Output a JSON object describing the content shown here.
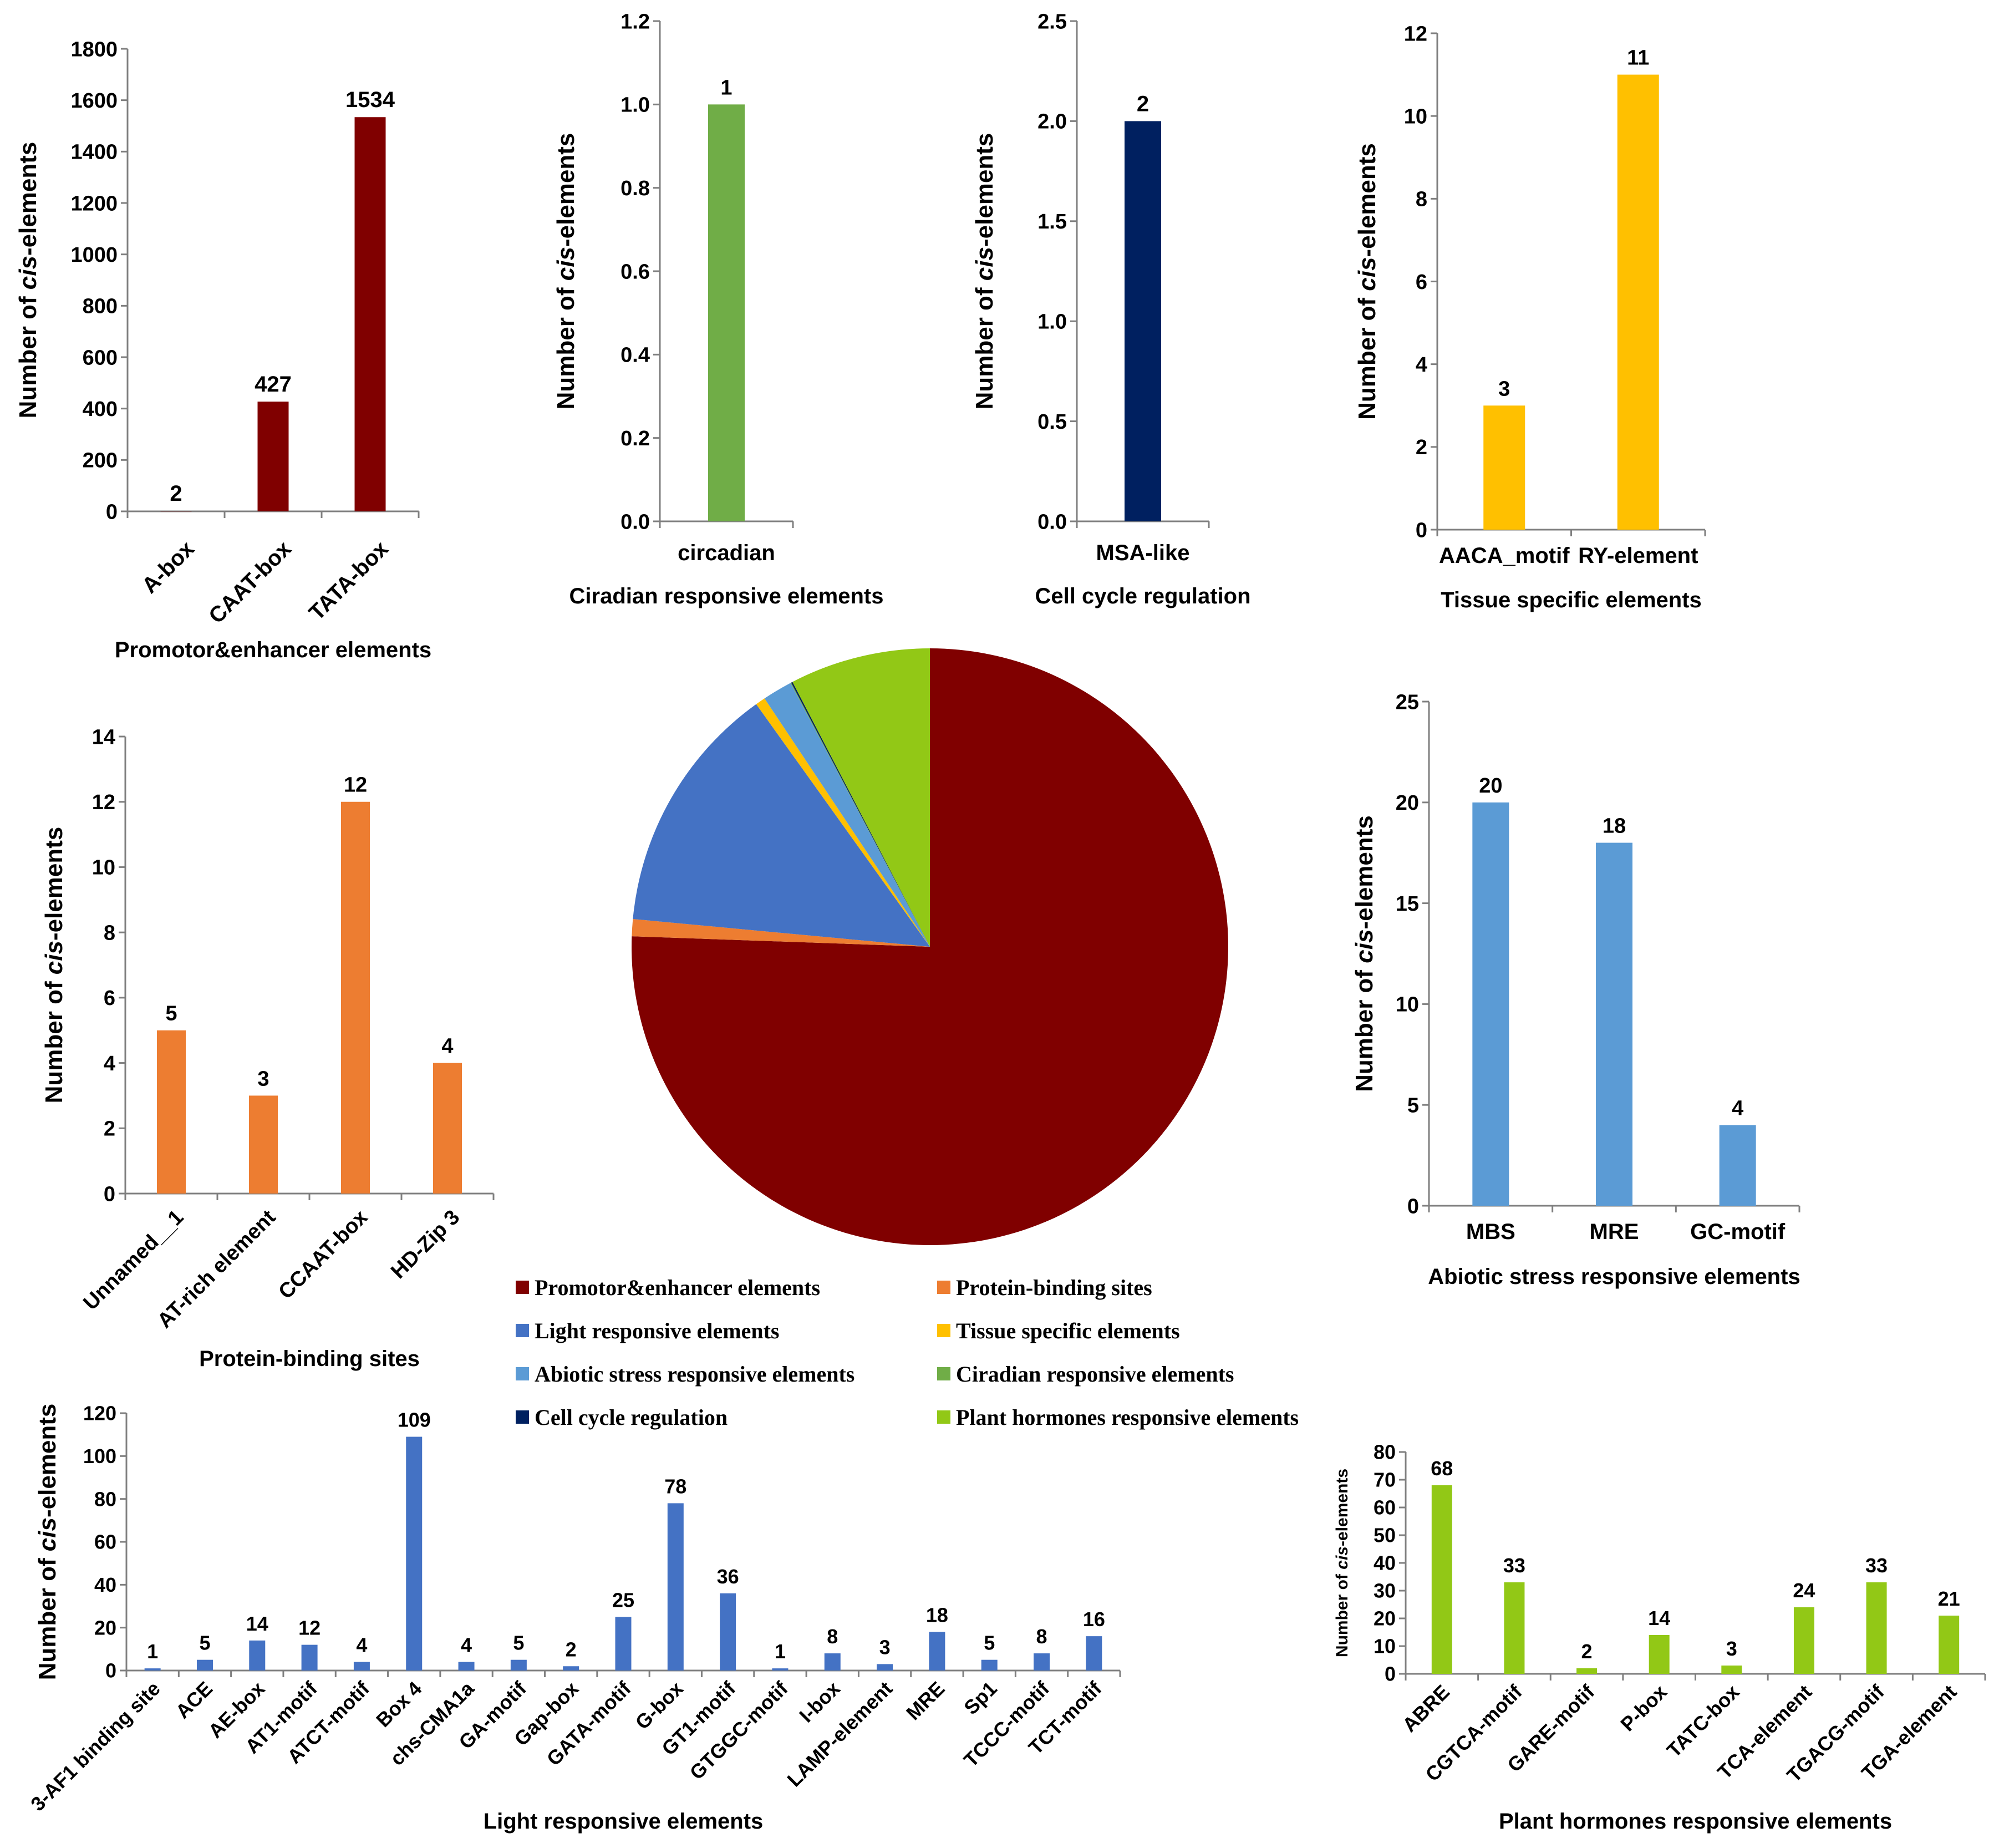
{
  "colors": {
    "promotor": "#800000",
    "protein": "#ed7d31",
    "light": "#4472c4",
    "tissue": "#ffc000",
    "abiotic": "#5b9bd5",
    "ciradian": "#70ad47",
    "cellcycle": "#002060",
    "hormone": "#92c816"
  },
  "chart_data": [
    {
      "id": "promotor",
      "type": "bar",
      "title": "Promotor&enhancer elements",
      "ylabel_pre": "Number of ",
      "ylabel_ital": "cis",
      "ylabel_post": "-elements",
      "categories": [
        "A-box",
        "CAAT-box",
        "TATA-box"
      ],
      "values": [
        2,
        427,
        1534
      ],
      "ylim": [
        0,
        1800
      ],
      "ticks": [
        0,
        200,
        400,
        600,
        800,
        1000,
        1200,
        1400,
        1600,
        1800
      ],
      "tick_labels": [
        "0",
        "200",
        "400",
        "600",
        "800",
        "1000",
        "1200",
        "1400",
        "1600",
        "1800"
      ],
      "color_key": "promotor"
    },
    {
      "id": "ciradian",
      "type": "bar",
      "title": "Ciradian responsive elements",
      "ylabel_pre": "Number of ",
      "ylabel_ital": "cis",
      "ylabel_post": "-elements",
      "categories": [
        "circadian"
      ],
      "values": [
        1
      ],
      "ylim": [
        0,
        1.2
      ],
      "ticks": [
        0,
        0.2,
        0.4,
        0.6,
        0.8,
        1.0,
        1.2
      ],
      "tick_labels": [
        "0.0",
        "0.2",
        "0.4",
        "0.6",
        "0.8",
        "1.0",
        "1.2"
      ],
      "color_key": "ciradian"
    },
    {
      "id": "cellcycle",
      "type": "bar",
      "title": "Cell cycle regulation",
      "ylabel_pre": "Number of ",
      "ylabel_ital": "cis",
      "ylabel_post": "-elements",
      "categories": [
        "MSA-like"
      ],
      "values": [
        2
      ],
      "ylim": [
        0,
        2.5
      ],
      "ticks": [
        0,
        0.5,
        1.0,
        1.5,
        2.0,
        2.5
      ],
      "tick_labels": [
        "0.0",
        "0.5",
        "1.0",
        "1.5",
        "2.0",
        "2.5"
      ],
      "color_key": "cellcycle"
    },
    {
      "id": "tissue",
      "type": "bar",
      "title": "Tissue specific elements",
      "ylabel_pre": "Number of ",
      "ylabel_ital": "cis",
      "ylabel_post": "-elements",
      "categories": [
        "AACA_motif",
        "RY-element"
      ],
      "values": [
        3,
        11
      ],
      "ylim": [
        0,
        12
      ],
      "ticks": [
        0,
        2,
        4,
        6,
        8,
        10,
        12
      ],
      "tick_labels": [
        "0",
        "2",
        "4",
        "6",
        "8",
        "10",
        "12"
      ],
      "color_key": "tissue"
    },
    {
      "id": "protein",
      "type": "bar",
      "title": "Protein-binding sites",
      "ylabel_pre": "Number of ",
      "ylabel_ital": "cis",
      "ylabel_post": "-elements",
      "categories": [
        "Unnamed__1",
        "AT-rich element",
        "CCAAT-box",
        "HD-Zip 3"
      ],
      "values": [
        5,
        3,
        12,
        4
      ],
      "ylim": [
        0,
        14
      ],
      "ticks": [
        0,
        2,
        4,
        6,
        8,
        10,
        12,
        14
      ],
      "tick_labels": [
        "0",
        "2",
        "4",
        "6",
        "8",
        "10",
        "12",
        "14"
      ],
      "color_key": "protein"
    },
    {
      "id": "abiotic",
      "type": "bar",
      "title": "Abiotic stress responsive elements",
      "ylabel_pre": "Number of ",
      "ylabel_ital": "cis",
      "ylabel_post": "-elements",
      "categories": [
        "MBS",
        "MRE",
        "GC-motif"
      ],
      "values": [
        20,
        18,
        4
      ],
      "ylim": [
        0,
        25
      ],
      "ticks": [
        0,
        5,
        10,
        15,
        20,
        25
      ],
      "tick_labels": [
        "0",
        "5",
        "10",
        "15",
        "20",
        "25"
      ],
      "color_key": "abiotic"
    },
    {
      "id": "light",
      "type": "bar",
      "title": "Light responsive elements",
      "ylabel_pre": "Number of ",
      "ylabel_ital": "cis",
      "ylabel_post": "-elements",
      "categories": [
        "3-AF1 binding site",
        "ACE",
        "AE-box",
        "AT1-motif",
        "ATCT-motif",
        "Box 4",
        "chs-CMA1a",
        "GA-motif",
        "Gap-box",
        "GATA-motif",
        "G-box",
        "GT1-motif",
        "GTGGC-motif",
        "I-box",
        "LAMP-element",
        "MRE",
        "Sp1",
        "TCCC-motif",
        "TCT-motif"
      ],
      "values": [
        1,
        5,
        14,
        12,
        4,
        109,
        4,
        5,
        2,
        25,
        78,
        36,
        1,
        8,
        3,
        18,
        5,
        8,
        16
      ],
      "ylim": [
        0,
        120
      ],
      "ticks": [
        0,
        20,
        40,
        60,
        80,
        100,
        120
      ],
      "tick_labels": [
        "0",
        "20",
        "40",
        "60",
        "80",
        "100",
        "120"
      ],
      "color_key": "light"
    },
    {
      "id": "hormone",
      "type": "bar",
      "title": "Plant hormones responsive elements",
      "ylabel_pre": "Number of ",
      "ylabel_ital": "cis",
      "ylabel_post": "-elements",
      "categories": [
        "ABRE",
        "CGTCA-motif",
        "GARE-motif",
        "P-box",
        "TATC-box",
        "TCA-element",
        "TGACG-motif",
        "TGA-element"
      ],
      "values": [
        68,
        33,
        2,
        14,
        3,
        24,
        33,
        21
      ],
      "ylim": [
        0,
        80
      ],
      "ticks": [
        0,
        10,
        20,
        30,
        40,
        50,
        60,
        70,
        80
      ],
      "tick_labels": [
        "0",
        "10",
        "20",
        "30",
        "40",
        "50",
        "60",
        "70",
        "80"
      ],
      "color_key": "hormone"
    },
    {
      "id": "pie",
      "type": "pie",
      "labels": [
        "Promotor&enhancer elements",
        "Protein-binding sites",
        "Light responsive elements",
        "Tissue specific elements",
        "Abiotic stress responsive elements",
        "Ciradian responsive elements",
        "Cell cycle regulation",
        "Plant hormones responsive elements"
      ],
      "values": [
        1963,
        24,
        354,
        14,
        42,
        1,
        2,
        198
      ],
      "color_keys": [
        "promotor",
        "protein",
        "light",
        "tissue",
        "abiotic",
        "ciradian",
        "cellcycle",
        "hormone"
      ]
    }
  ],
  "legend": {
    "items": [
      {
        "label": "Promotor&enhancer elements",
        "color_key": "promotor"
      },
      {
        "label": "Protein-binding sites",
        "color_key": "protein"
      },
      {
        "label": "Light responsive elements",
        "color_key": "light"
      },
      {
        "label": "Tissue specific elements",
        "color_key": "tissue"
      },
      {
        "label": "Abiotic stress responsive elements",
        "color_key": "abiotic"
      },
      {
        "label": "Ciradian responsive elements",
        "color_key": "ciradian"
      },
      {
        "label": "Cell cycle regulation",
        "color_key": "cellcycle"
      },
      {
        "label": "Plant hormones responsive elements",
        "color_key": "hormone"
      }
    ]
  }
}
